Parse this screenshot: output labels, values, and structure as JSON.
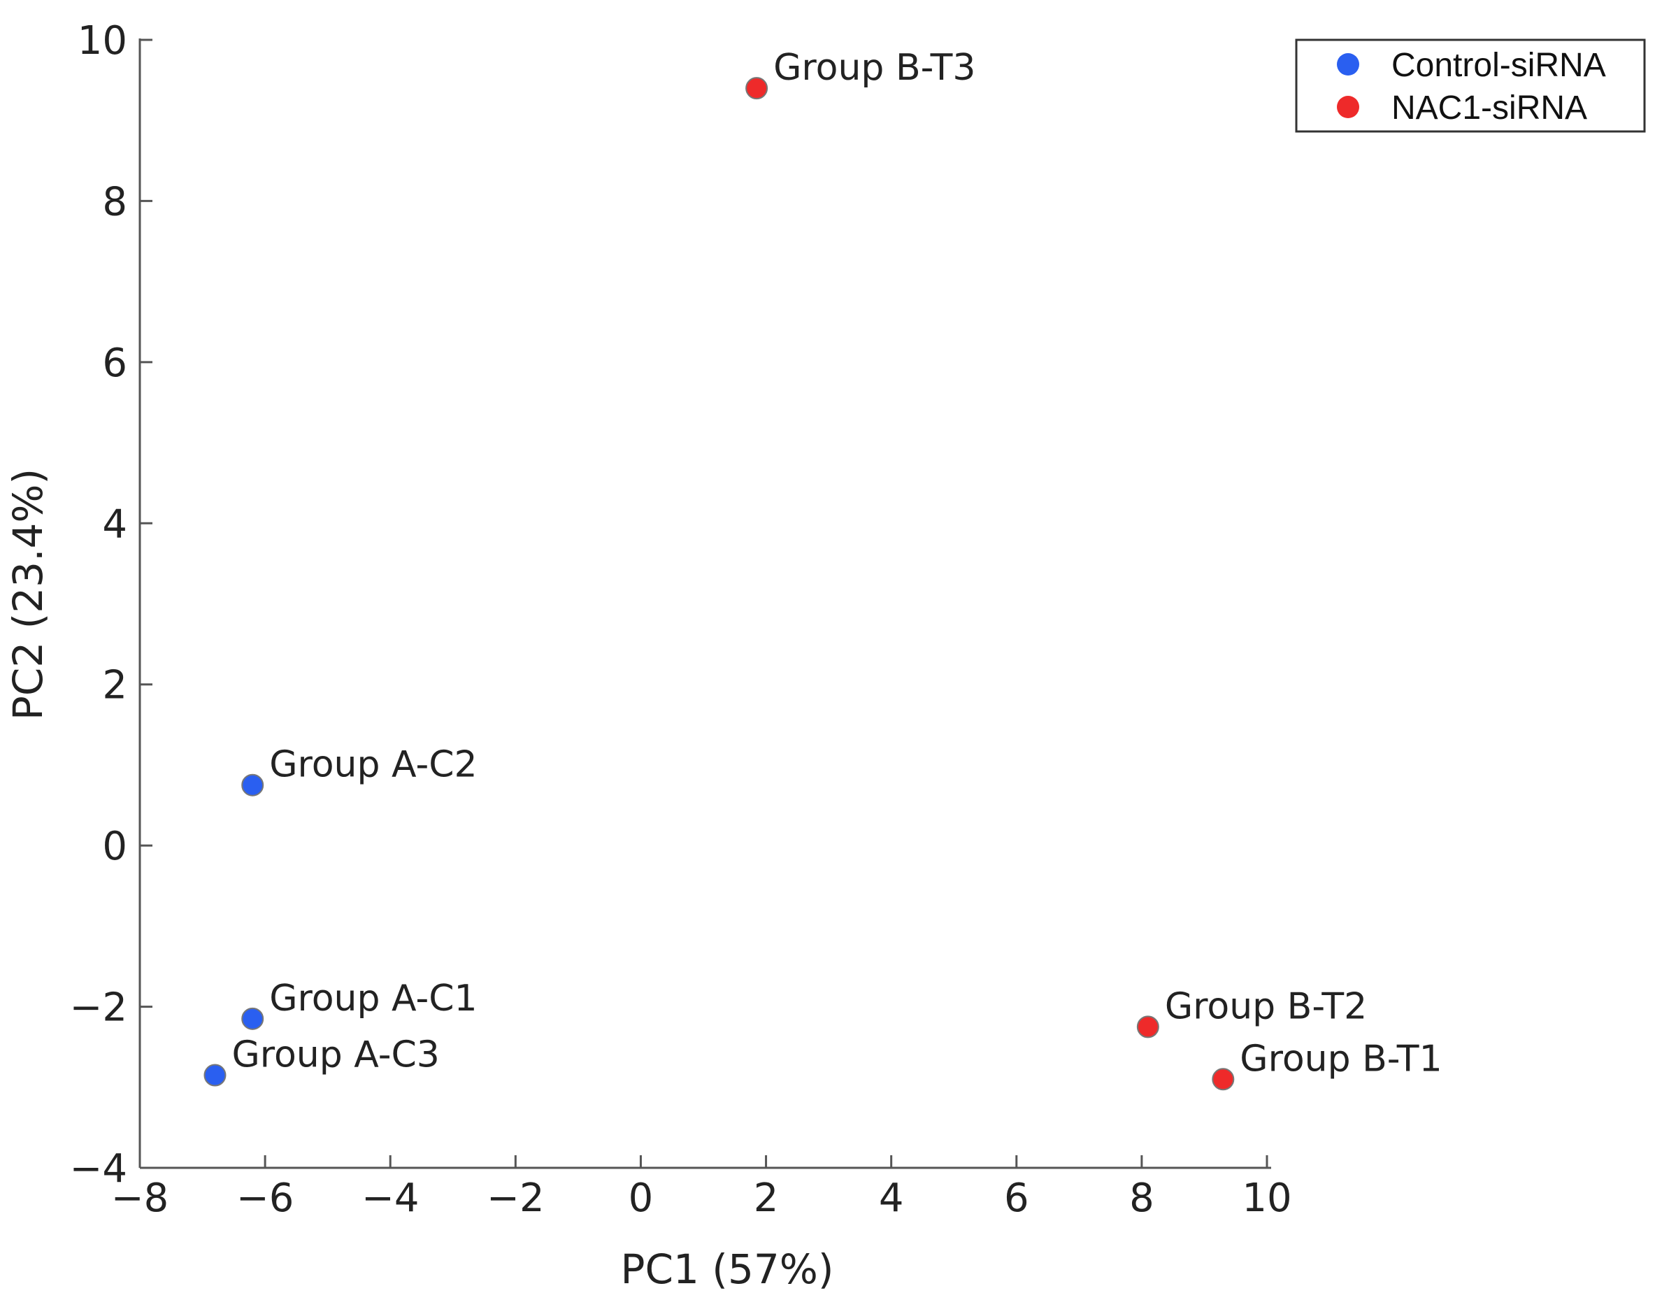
{
  "chart_data": {
    "type": "scatter",
    "title": "",
    "xlabel": "PC1 (57%)",
    "ylabel": "PC2 (23.4%)",
    "xlim": [
      -8,
      10
    ],
    "ylim": [
      -4,
      10
    ],
    "xticks": [
      -8,
      -6,
      -4,
      -2,
      0,
      2,
      4,
      6,
      8,
      10
    ],
    "yticks": [
      -4,
      -2,
      0,
      2,
      4,
      6,
      8,
      10
    ],
    "xtick_labels": [
      "−8",
      "−6",
      "−4",
      "−2",
      "0",
      "2",
      "4",
      "6",
      "8",
      "10"
    ],
    "ytick_labels": [
      "−4",
      "−2",
      "0",
      "2",
      "4",
      "6",
      "8",
      "10"
    ],
    "grid": false,
    "legend_position": "top-right",
    "series": [
      {
        "name": "Control-siRNA",
        "color": "#2a5ff0",
        "points": [
          {
            "label": "Group A-C2",
            "x": -6.2,
            "y": 0.75
          },
          {
            "label": "Group A-C1",
            "x": -6.2,
            "y": -2.15
          },
          {
            "label": "Group A-C3",
            "x": -6.8,
            "y": -2.85
          }
        ]
      },
      {
        "name": "NAC1-siRNA",
        "color": "#ee2a2a",
        "points": [
          {
            "label": "Group B-T3",
            "x": 1.85,
            "y": 9.4
          },
          {
            "label": "Group B-T2",
            "x": 8.1,
            "y": -2.25
          },
          {
            "label": "Group B-T1",
            "x": 9.3,
            "y": -2.9
          }
        ]
      }
    ]
  }
}
